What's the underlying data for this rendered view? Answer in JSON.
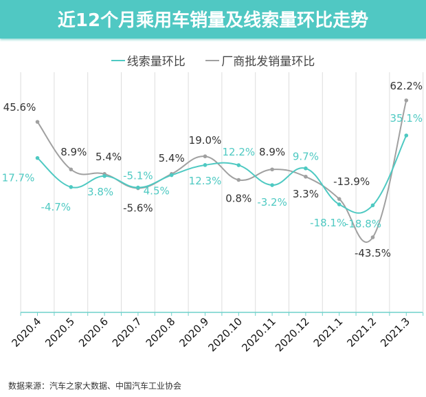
{
  "title": "近12个月乘用车销量及线索量环比走势",
  "source": "数据来源：汽车之家大数据、中国汽车工业协会",
  "chart_data": {
    "type": "line",
    "title": "近12个月乘用车销量及线索量环比走势",
    "categories": [
      "2020.4",
      "2020.5",
      "2020.6",
      "2020.7",
      "2020.8",
      "2020.9",
      "2020.10",
      "2020.11",
      "2020.12",
      "2021.1",
      "2021.2",
      "2021.3"
    ],
    "series": [
      {
        "name": "线索量环比",
        "color": "#4ec9c2",
        "values": [
          17.7,
          -4.7,
          3.8,
          -5.1,
          4.5,
          12.3,
          12.2,
          -3.2,
          9.7,
          -18.1,
          -18.8,
          35.1
        ],
        "labels": [
          "17.7%",
          "-4.7%",
          "3.8%",
          "-5.1%",
          "4.5%",
          "12.3%",
          "12.2%",
          "-3.2%",
          "9.7%",
          "-18.1%",
          "-18.8%",
          "35.1%"
        ]
      },
      {
        "name": "厂商批发销量环比",
        "color": "#a0a0a0",
        "values": [
          45.6,
          8.9,
          5.4,
          -5.6,
          5.4,
          19.0,
          0.8,
          8.9,
          3.3,
          -13.9,
          -43.5,
          62.2
        ],
        "labels": [
          "45.6%",
          "8.9%",
          "5.4%",
          "-5.6%",
          "5.4%",
          "19.0%",
          "0.8%",
          "8.9%",
          "3.3%",
          "-13.9%",
          "-43.5%",
          "62.2%"
        ]
      }
    ],
    "unit": "%",
    "ylim": [
      -100,
      80
    ],
    "grid": "vertical",
    "legend": "top"
  }
}
